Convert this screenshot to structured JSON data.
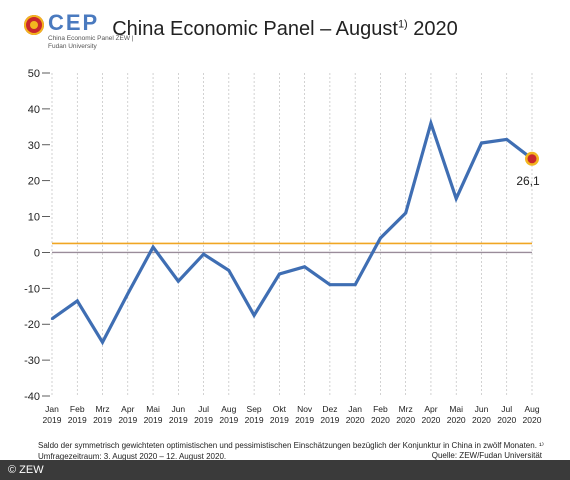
{
  "logo": {
    "name": "CEP",
    "subtitle": "China Economic Panel ZEW | Fudan University"
  },
  "title_main": "China Economic Panel – August",
  "title_sup": "1)",
  "title_year": "2020",
  "footnote": "Saldo der symmetrisch gewichteten optimistischen und pessimistischen Einschätzungen bezüglich der Konjunktur in China in zwölf Monaten. ¹⁾ Umfragezeitraum: 3. August 2020 – 12. August 2020.",
  "source": "Quelle: ZEW/Fudan Universität",
  "copyright": "© ZEW",
  "colors": {
    "line": "#3f6eb3",
    "reference_line": "#f0a623",
    "zero_line": "#9a8c9a",
    "end_marker": "#c9272c",
    "end_marker_ring": "#f2b51f"
  },
  "chart_data": {
    "type": "line",
    "x": [
      [
        "Jan",
        "2019"
      ],
      [
        "Feb",
        "2019"
      ],
      [
        "Mrz",
        "2019"
      ],
      [
        "Apr",
        "2019"
      ],
      [
        "Mai",
        "2019"
      ],
      [
        "Jun",
        "2019"
      ],
      [
        "Jul",
        "2019"
      ],
      [
        "Aug",
        "2019"
      ],
      [
        "Sep",
        "2019"
      ],
      [
        "Okt",
        "2019"
      ],
      [
        "Nov",
        "2019"
      ],
      [
        "Dez",
        "2019"
      ],
      [
        "Jan",
        "2020"
      ],
      [
        "Feb",
        "2020"
      ],
      [
        "Mrz",
        "2020"
      ],
      [
        "Apr",
        "2020"
      ],
      [
        "Mai",
        "2020"
      ],
      [
        "Jun",
        "2020"
      ],
      [
        "Jul",
        "2020"
      ],
      [
        "Aug",
        "2020"
      ]
    ],
    "values": [
      -18.5,
      -13.5,
      -25,
      -11.5,
      1.5,
      -8,
      -0.5,
      -5,
      -17.5,
      -6,
      -4,
      -9,
      -9,
      4,
      11,
      36,
      15,
      30.5,
      31.5,
      26.1
    ],
    "ylim": [
      -40,
      50
    ],
    "yticks": [
      -40,
      -30,
      -20,
      -10,
      0,
      10,
      20,
      30,
      40,
      50
    ],
    "ytick_labels": [
      "-40",
      "-30",
      "-20",
      "-10",
      "0",
      "10",
      "20",
      "30",
      "40",
      "50"
    ],
    "reference_value": 2.5,
    "zero_line": 0,
    "end_label": "26,1",
    "grid": "vertical"
  }
}
